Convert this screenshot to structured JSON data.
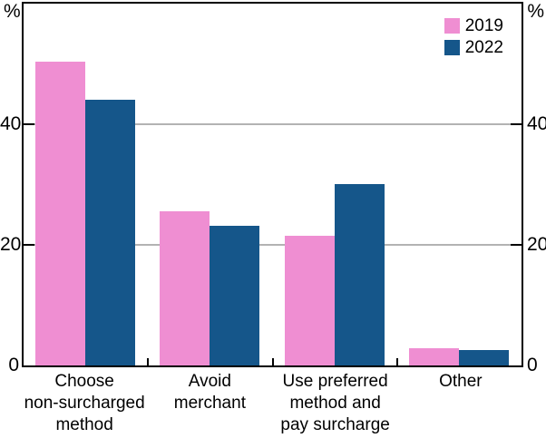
{
  "chart_data": {
    "type": "bar",
    "unit_left": "%",
    "unit_right": "%",
    "categories": [
      "Choose\nnon-surcharged\nmethod",
      "Avoid\nmerchant",
      "Use preferred\nmethod and\npay surcharge",
      "Other"
    ],
    "series": [
      {
        "name": "2019",
        "color": "#EF8ED2",
        "values": [
          50.4,
          25.5,
          21.5,
          2.8
        ]
      },
      {
        "name": "2022",
        "color": "#15568A",
        "values": [
          44.0,
          23.2,
          30.1,
          2.5
        ]
      }
    ],
    "yticks": [
      0,
      20,
      40
    ],
    "ylim": [
      0,
      60
    ],
    "grid": true,
    "gridline_color": "#b3b3b3",
    "axis_color": "#000000",
    "legend_position": "top-right",
    "xlabel": "",
    "ylabel": "%"
  }
}
